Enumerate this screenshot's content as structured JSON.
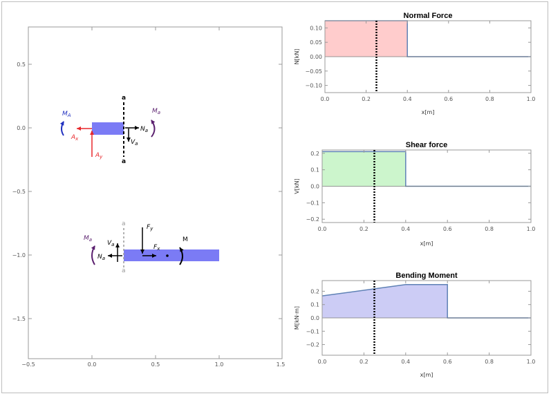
{
  "free_body": {
    "x_ticks": [
      "−0.5",
      "0.0",
      "0.5",
      "1.0",
      "1.5"
    ],
    "y_ticks": [
      "0.5",
      "0.0",
      "−0.5",
      "−1.0",
      "−1.5"
    ],
    "upper": {
      "section_top": "a",
      "section_bottom": "a",
      "MA": "M",
      "MA_sub": "A",
      "Ax": "A",
      "Ax_sub": "x",
      "Ay": "A",
      "Ay_sub": "y",
      "Ma": "M",
      "Ma_sub": "a",
      "Na": "N",
      "Na_sub": "a",
      "Va": "V",
      "Va_sub": "a"
    },
    "lower": {
      "section_top": "a",
      "section_bottom": "a",
      "Ma": "M",
      "Ma_sub": "a",
      "Va": "V",
      "Va_sub": "a",
      "Na": "N",
      "Na_sub": "a",
      "Fy": "F",
      "Fy_sub": "y",
      "Fx": "F",
      "Fx_sub": "x",
      "M": "M"
    }
  },
  "chart_data": [
    {
      "type": "area",
      "title": "Normal Force",
      "xlabel": "x[m]",
      "ylabel": "N[kN]",
      "xlim": [
        0,
        1.0
      ],
      "ylim": [
        -0.125,
        0.125
      ],
      "x": [
        0,
        0.4,
        0.4,
        1.0
      ],
      "y": [
        0.125,
        0.125,
        0,
        0
      ],
      "x_ticks": [
        "0.0",
        "0.2",
        "0.4",
        "0.6",
        "0.8",
        "1.0"
      ],
      "y_ticks": [
        "0.10",
        "0.05",
        "0.00",
        "−0.05",
        "−0.10"
      ],
      "y_tick_values": [
        0.1,
        0.05,
        0,
        -0.05,
        -0.1
      ],
      "section_x": 0.25,
      "fill": "#ffcccc",
      "line": "#5e81b5"
    },
    {
      "type": "area",
      "title": "Shear force",
      "xlabel": "x[m]",
      "ylabel": "V[kN]",
      "xlim": [
        0,
        1.0
      ],
      "ylim": [
        -0.22,
        0.22
      ],
      "x": [
        0,
        0.4,
        0.4,
        1.0
      ],
      "y": [
        0.21,
        0.21,
        0,
        0
      ],
      "x_ticks": [
        "0.0",
        "0.2",
        "0.4",
        "0.6",
        "0.8",
        "1.0"
      ],
      "y_ticks": [
        "0.2",
        "0.1",
        "0.0",
        "−0.1",
        "−0.2"
      ],
      "y_tick_values": [
        0.2,
        0.1,
        0,
        -0.1,
        -0.2
      ],
      "section_x": 0.25,
      "fill": "#ccf5cc",
      "line": "#5e81b5"
    },
    {
      "type": "area",
      "title": "Bending Moment",
      "xlabel": "x[m]",
      "ylabel": "M[kN·m]",
      "xlim": [
        0,
        1.0
      ],
      "ylim": [
        -0.28,
        0.28
      ],
      "x": [
        0,
        0.4,
        0.6,
        0.6,
        1.0
      ],
      "y": [
        0.165,
        0.25,
        0.25,
        0,
        0
      ],
      "x_ticks": [
        "0.0",
        "0.2",
        "0.4",
        "0.6",
        "0.8",
        "1.0"
      ],
      "y_ticks": [
        "0.2",
        "0.1",
        "0.0",
        "−0.1",
        "−0.2"
      ],
      "y_tick_values": [
        0.2,
        0.1,
        0,
        -0.1,
        -0.2
      ],
      "section_x": 0.25,
      "fill": "#ccccf5",
      "line": "#5e81b5"
    }
  ]
}
